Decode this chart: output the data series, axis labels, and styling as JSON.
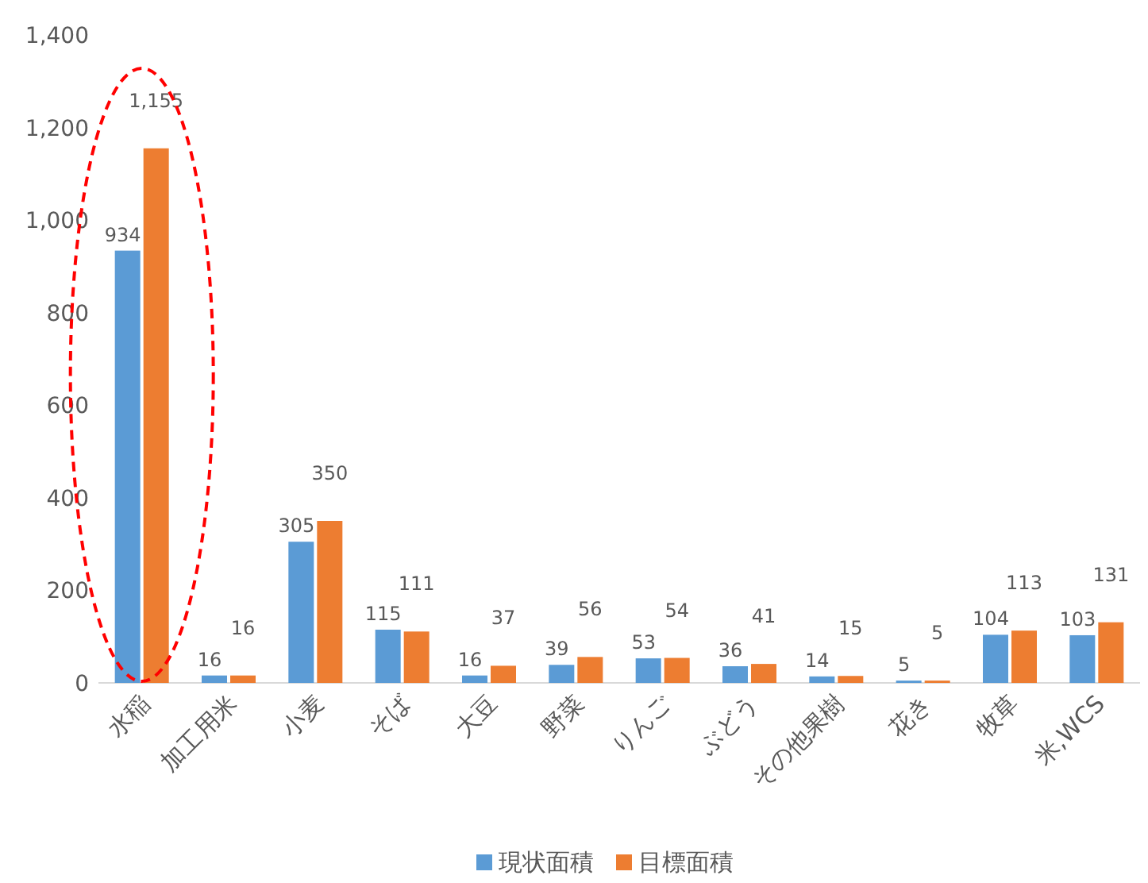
{
  "chart_data": {
    "type": "bar",
    "categories": [
      "水稲",
      "加工用米",
      "小麦",
      "そば",
      "大豆",
      "野菜",
      "りんご",
      "ぶどう",
      "その他果樹",
      "花き",
      "牧草",
      "米,WCS"
    ],
    "series": [
      {
        "name": "現状面積",
        "color": "#5b9bd5",
        "values": [
          934,
          16,
          305,
          115,
          16,
          39,
          53,
          36,
          14,
          5,
          104,
          103
        ],
        "value_labels": [
          "934",
          "16",
          "305",
          "115",
          "16",
          "39",
          "53",
          "36",
          "14",
          "5",
          "104",
          "103"
        ]
      },
      {
        "name": "目標面積",
        "color": "#ed7d31",
        "values": [
          1155,
          16,
          350,
          111,
          37,
          56,
          54,
          41,
          15,
          5,
          113,
          131
        ],
        "value_labels": [
          "1,155",
          "16",
          "350",
          "111",
          "37",
          "56",
          "54",
          "41",
          "15",
          "5",
          "113",
          "131"
        ]
      }
    ],
    "ylim": [
      0,
      1400
    ],
    "yticks": [
      0,
      200,
      400,
      600,
      800,
      {
        "value": 1000,
        "label": "1,000"
      },
      {
        "value": 1200,
        "label": "1,200"
      },
      {
        "value": 1400,
        "label": "1,400"
      }
    ],
    "legend": "bottom",
    "grid": false
  }
}
